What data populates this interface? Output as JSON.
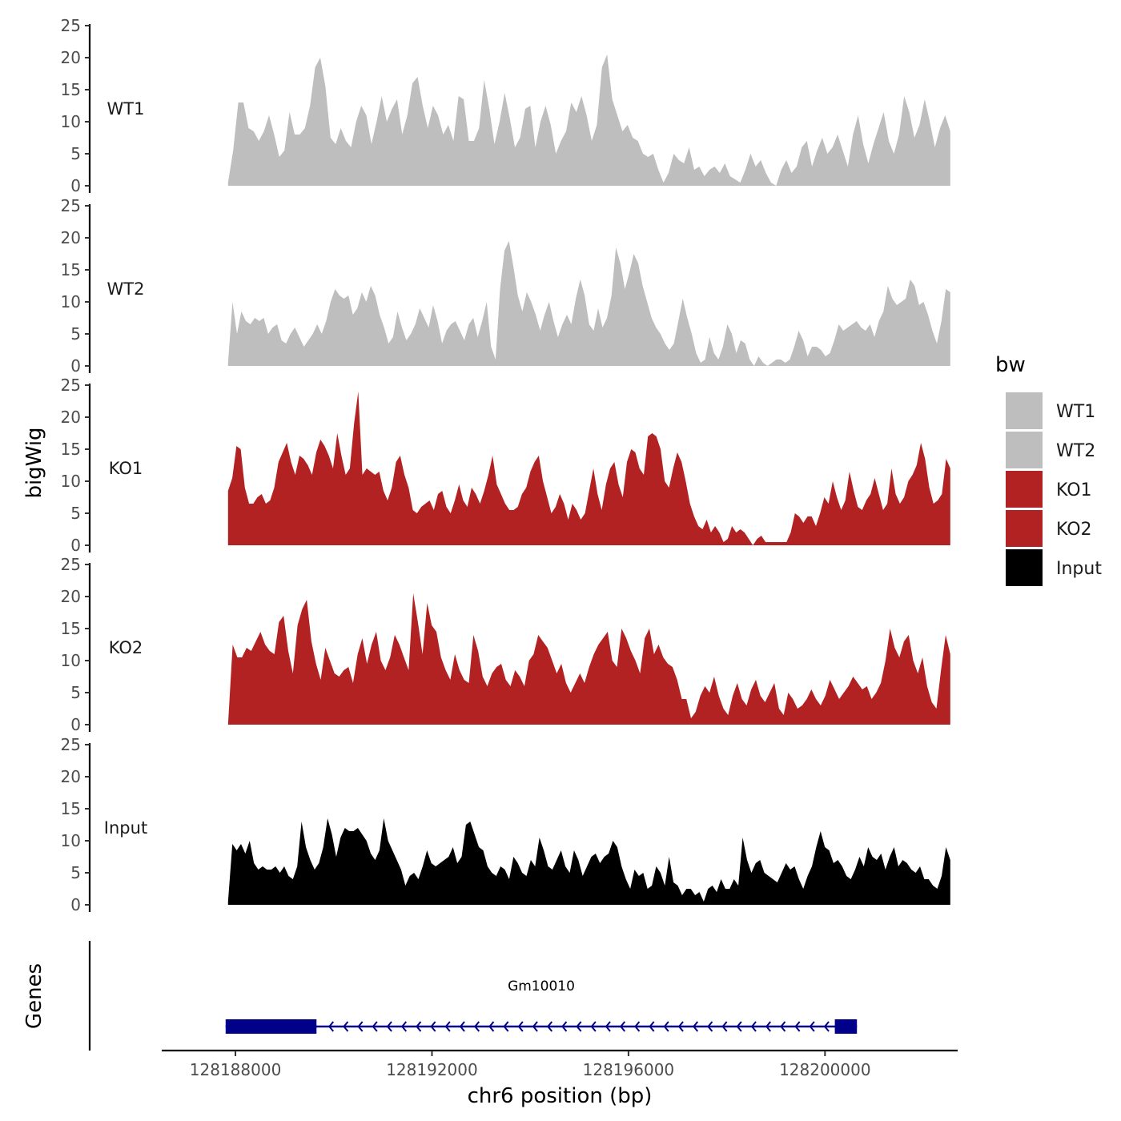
{
  "chart_data": {
    "type": "area",
    "title": "",
    "xlabel": "chr6 position (bp)",
    "ylabel": "bigWig",
    "genes_ylabel": "Genes",
    "xlim": [
      128186500,
      128202700
    ],
    "x_ticks": [
      128188000,
      128192000,
      128196000,
      128200000
    ],
    "x_tick_labels": [
      "128188000",
      "128192000",
      "128196000",
      "128200000"
    ],
    "ylim": [
      0,
      25
    ],
    "y_ticks": [
      0,
      5,
      10,
      15,
      20,
      25
    ],
    "y_tick_labels": [
      "0",
      "5",
      "10",
      "15",
      "20",
      "25"
    ],
    "track_range": [
      128187850,
      128202550
    ],
    "tracks": [
      {
        "name": "WT1",
        "color": "#bebebe",
        "values": [
          0.5,
          5.5,
          13.0,
          13.0,
          9.0,
          8.5,
          7.0,
          8.5,
          11.0,
          8.0,
          4.5,
          5.5,
          11.5,
          8.0,
          8.0,
          9.0,
          12.5,
          18.5,
          20.0,
          15.5,
          7.5,
          6.5,
          9.0,
          7.0,
          6.0,
          10.0,
          12.5,
          11.0,
          6.5,
          10.0,
          14.0,
          10.0,
          12.0,
          13.5,
          8.0,
          11.0,
          16.0,
          17.0,
          12.5,
          9.0,
          12.5,
          11.0,
          8.0,
          9.5,
          7.0,
          14.0,
          13.5,
          7.0,
          7.0,
          9.0,
          16.5,
          12.0,
          6.5,
          10.0,
          14.5,
          10.5,
          6.0,
          7.5,
          12.0,
          12.5,
          6.0,
          10.0,
          12.5,
          9.5,
          5.0,
          7.0,
          8.5,
          13.0,
          11.5,
          14.0,
          11.0,
          7.0,
          9.5,
          18.5,
          20.5,
          13.5,
          11.0,
          8.5,
          9.5,
          7.5,
          7.0,
          5.0,
          4.5,
          5.0,
          2.5,
          0.5,
          2.0,
          5.0,
          4.0,
          3.5,
          6.0,
          2.5,
          3.0,
          1.5,
          2.5,
          3.0,
          2.0,
          3.5,
          1.5,
          1.0,
          0.5,
          2.5,
          5.0,
          3.0,
          4.0,
          2.0,
          0.5,
          0.0,
          2.5,
          4.0,
          2.0,
          3.0,
          6.0,
          7.0,
          3.0,
          5.5,
          7.5,
          5.0,
          6.0,
          8.0,
          5.5,
          3.0,
          8.0,
          11.0,
          6.5,
          3.5,
          6.5,
          9.0,
          11.5,
          7.0,
          5.0,
          8.0,
          14.0,
          11.5,
          7.5,
          9.5,
          13.5,
          10.0,
          6.0,
          9.0,
          11.0,
          8.5
        ]
      },
      {
        "name": "WT2",
        "color": "#bebebe",
        "values": [
          0.5,
          10.0,
          5.0,
          8.5,
          7.0,
          6.5,
          7.5,
          7.0,
          7.5,
          5.0,
          6.0,
          6.5,
          4.0,
          3.5,
          5.0,
          6.0,
          4.5,
          3.0,
          4.0,
          5.0,
          6.5,
          5.0,
          7.0,
          10.0,
          12.0,
          11.0,
          10.5,
          11.0,
          8.0,
          9.0,
          11.5,
          10.0,
          12.5,
          11.0,
          8.0,
          6.0,
          3.5,
          4.5,
          8.5,
          6.0,
          4.0,
          5.0,
          6.5,
          9.0,
          7.5,
          6.0,
          9.5,
          7.0,
          3.5,
          5.5,
          6.5,
          7.0,
          5.5,
          4.0,
          6.5,
          7.5,
          4.5,
          7.0,
          10.0,
          3.0,
          1.0,
          12.0,
          18.0,
          19.5,
          15.5,
          11.0,
          8.5,
          11.5,
          10.0,
          8.0,
          5.5,
          8.0,
          10.0,
          7.0,
          4.5,
          6.5,
          8.0,
          6.5,
          10.5,
          13.5,
          11.0,
          6.5,
          5.5,
          9.0,
          6.0,
          7.5,
          11.0,
          18.5,
          16.0,
          12.0,
          14.5,
          17.5,
          16.0,
          12.5,
          10.0,
          7.5,
          6.0,
          5.0,
          3.5,
          2.5,
          3.5,
          7.0,
          10.5,
          7.5,
          5.0,
          2.0,
          0.5,
          1.0,
          4.5,
          2.0,
          1.0,
          3.0,
          6.5,
          5.0,
          2.0,
          4.0,
          3.5,
          1.0,
          0.0,
          1.5,
          0.5,
          0.0,
          0.5,
          1.0,
          1.0,
          0.5,
          1.0,
          3.0,
          5.5,
          4.0,
          1.5,
          3.0,
          3.0,
          2.5,
          1.5,
          2.0,
          4.0,
          6.5,
          5.5,
          6.0,
          6.5,
          7.0,
          6.0,
          5.5,
          6.5,
          4.5,
          7.0,
          8.5,
          12.5,
          10.5,
          9.5,
          10.0,
          10.5,
          13.5,
          12.5,
          9.5,
          10.0,
          8.0,
          5.5,
          3.5,
          7.0,
          12.0,
          11.5
        ]
      },
      {
        "name": "KO1",
        "color": "#b22222",
        "values": [
          8.5,
          10.5,
          15.5,
          15.0,
          9.0,
          6.5,
          6.5,
          7.5,
          8.0,
          6.5,
          7.0,
          9.0,
          13.0,
          14.5,
          16.0,
          13.0,
          11.0,
          14.0,
          13.5,
          12.5,
          11.0,
          14.5,
          16.5,
          15.5,
          14.0,
          12.0,
          17.5,
          14.0,
          11.0,
          12.0,
          19.0,
          24.0,
          11.0,
          12.0,
          11.5,
          11.0,
          11.5,
          8.5,
          7.0,
          9.0,
          13.0,
          14.0,
          11.0,
          9.0,
          5.5,
          5.0,
          6.0,
          6.5,
          7.0,
          5.5,
          8.0,
          8.5,
          6.0,
          5.0,
          7.0,
          9.5,
          7.0,
          6.0,
          9.0,
          8.0,
          6.5,
          8.5,
          11.0,
          14.0,
          9.5,
          8.0,
          6.5,
          5.5,
          5.5,
          6.0,
          8.0,
          9.0,
          11.5,
          13.0,
          14.0,
          10.0,
          7.5,
          5.0,
          6.0,
          8.0,
          6.5,
          4.0,
          6.5,
          5.5,
          4.0,
          5.0,
          8.5,
          12.0,
          8.0,
          5.5,
          9.5,
          12.0,
          13.0,
          9.5,
          7.5,
          13.0,
          15.0,
          14.5,
          12.0,
          11.0,
          17.0,
          17.5,
          17.0,
          15.0,
          10.0,
          9.0,
          12.0,
          14.5,
          13.0,
          10.0,
          6.5,
          4.5,
          3.0,
          2.5,
          4.0,
          2.0,
          3.0,
          2.0,
          0.5,
          1.0,
          3.0,
          2.0,
          2.5,
          2.0,
          1.0,
          0.0,
          1.0,
          1.5,
          0.5,
          0.5,
          0.5,
          0.5,
          0.5,
          0.5,
          2.0,
          5.0,
          4.5,
          3.5,
          4.5,
          4.5,
          3.0,
          5.0,
          7.5,
          6.5,
          10.0,
          7.5,
          5.5,
          7.0,
          11.5,
          8.5,
          6.0,
          5.5,
          7.0,
          8.0,
          10.5,
          8.0,
          5.5,
          6.5,
          12.0,
          8.0,
          6.5,
          7.5,
          10.0,
          11.0,
          12.5,
          16.0,
          13.5,
          9.0,
          6.5,
          7.0,
          8.0,
          13.5,
          12.0
        ]
      },
      {
        "name": "KO2",
        "color": "#b22222",
        "values": [
          0.0,
          12.5,
          10.5,
          10.5,
          12.0,
          11.5,
          13.0,
          14.5,
          12.5,
          11.5,
          11.0,
          16.0,
          17.0,
          11.5,
          8.0,
          15.5,
          18.0,
          19.5,
          13.0,
          9.5,
          7.0,
          12.0,
          10.0,
          8.0,
          7.5,
          8.5,
          9.0,
          6.5,
          11.0,
          13.5,
          9.5,
          12.5,
          14.5,
          10.0,
          8.5,
          10.5,
          14.0,
          12.5,
          10.5,
          8.5,
          20.5,
          16.0,
          11.0,
          19.0,
          15.5,
          14.5,
          10.5,
          8.5,
          7.0,
          11.0,
          8.5,
          7.0,
          6.5,
          14.0,
          11.5,
          7.5,
          6.0,
          8.0,
          9.0,
          9.5,
          7.0,
          6.0,
          8.5,
          7.5,
          6.0,
          10.0,
          11.0,
          14.0,
          13.0,
          12.0,
          10.0,
          8.0,
          9.5,
          6.5,
          5.0,
          6.5,
          8.0,
          6.5,
          9.0,
          11.0,
          12.5,
          13.5,
          14.5,
          10.0,
          9.0,
          15.0,
          13.5,
          11.5,
          10.0,
          8.0,
          13.5,
          15.0,
          11.0,
          12.5,
          10.5,
          9.5,
          9.0,
          7.0,
          4.0,
          4.0,
          1.0,
          2.0,
          4.5,
          6.0,
          5.0,
          7.5,
          4.5,
          2.5,
          1.5,
          4.5,
          6.5,
          4.0,
          3.0,
          5.5,
          7.0,
          4.5,
          3.5,
          5.0,
          6.5,
          2.5,
          1.5,
          5.0,
          4.0,
          2.5,
          3.0,
          4.0,
          5.5,
          4.0,
          3.0,
          4.5,
          7.0,
          5.5,
          4.0,
          5.0,
          6.0,
          7.5,
          6.5,
          5.5,
          6.0,
          4.0,
          5.0,
          6.5,
          10.0,
          15.0,
          12.0,
          10.5,
          13.0,
          14.0,
          10.0,
          8.0,
          10.5,
          6.0,
          3.5,
          2.5,
          8.5,
          14.0,
          11.0
        ]
      },
      {
        "name": "Input",
        "color": "#000000",
        "values": [
          0.5,
          9.5,
          8.5,
          9.5,
          8.0,
          10.0,
          6.5,
          5.5,
          6.0,
          5.5,
          5.5,
          6.0,
          5.0,
          6.0,
          4.5,
          4.0,
          6.0,
          13.0,
          9.0,
          7.0,
          5.5,
          6.5,
          9.0,
          13.5,
          11.0,
          7.5,
          10.5,
          12.0,
          11.5,
          11.5,
          12.0,
          11.0,
          10.0,
          8.0,
          7.0,
          8.5,
          13.5,
          10.0,
          8.5,
          7.0,
          5.5,
          3.0,
          4.5,
          5.0,
          4.0,
          6.0,
          8.5,
          6.5,
          6.0,
          6.5,
          7.0,
          7.5,
          9.0,
          6.5,
          7.5,
          12.5,
          13.0,
          11.0,
          9.0,
          8.5,
          6.0,
          5.0,
          4.5,
          6.0,
          5.5,
          4.0,
          7.5,
          6.5,
          5.0,
          4.5,
          7.0,
          6.0,
          10.5,
          8.5,
          6.0,
          5.5,
          7.0,
          8.5,
          6.0,
          5.0,
          8.5,
          7.0,
          4.5,
          6.0,
          7.5,
          8.0,
          6.5,
          7.5,
          8.0,
          10.0,
          9.0,
          6.0,
          4.0,
          2.5,
          5.5,
          4.5,
          5.0,
          2.5,
          3.0,
          6.0,
          5.0,
          3.0,
          7.5,
          3.5,
          3.0,
          1.5,
          2.5,
          2.5,
          1.5,
          2.0,
          0.5,
          2.5,
          3.0,
          2.0,
          4.0,
          2.5,
          2.5,
          4.0,
          3.0,
          10.5,
          7.0,
          5.0,
          6.5,
          7.0,
          5.0,
          4.5,
          4.0,
          3.5,
          5.0,
          6.5,
          5.5,
          6.0,
          4.0,
          2.5,
          4.5,
          6.0,
          9.0,
          11.5,
          9.0,
          8.5,
          6.5,
          7.0,
          6.0,
          4.5,
          4.0,
          5.5,
          7.5,
          6.0,
          9.0,
          7.5,
          7.0,
          8.0,
          5.5,
          7.5,
          9.0,
          6.0,
          7.0,
          6.5,
          5.5,
          5.0,
          6.0,
          4.0,
          4.0,
          3.0,
          2.5,
          4.5,
          9.0,
          7.0
        ]
      }
    ],
    "legend": {
      "title": "bw",
      "position": "right",
      "entries": [
        {
          "label": "WT1",
          "color": "#bebebe"
        },
        {
          "label": "WT2",
          "color": "#bebebe"
        },
        {
          "label": "KO1",
          "color": "#b22222"
        },
        {
          "label": "KO2",
          "color": "#b22222"
        },
        {
          "label": "Input",
          "color": "#000000"
        }
      ]
    },
    "gene": {
      "name": "Gm10010",
      "color": "#00008b",
      "strand": "-",
      "start": 128187800,
      "end": 128200650,
      "exons": [
        [
          128187800,
          128189650
        ],
        [
          128200200,
          128200650
        ]
      ]
    }
  }
}
